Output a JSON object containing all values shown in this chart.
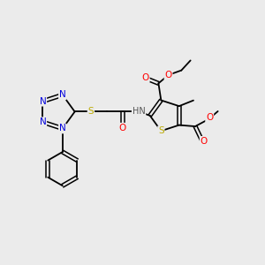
{
  "background_color": "#ebebeb",
  "atom_colors": {
    "N": "#0000dd",
    "O": "#ff0000",
    "S": "#bbaa00",
    "C": "#000000",
    "H": "#555555"
  },
  "font_size_atoms": 7.5,
  "fig_size": [
    3.0,
    3.0
  ],
  "dpi": 100,
  "xlim": [
    0,
    10
  ],
  "ylim": [
    0,
    10
  ]
}
